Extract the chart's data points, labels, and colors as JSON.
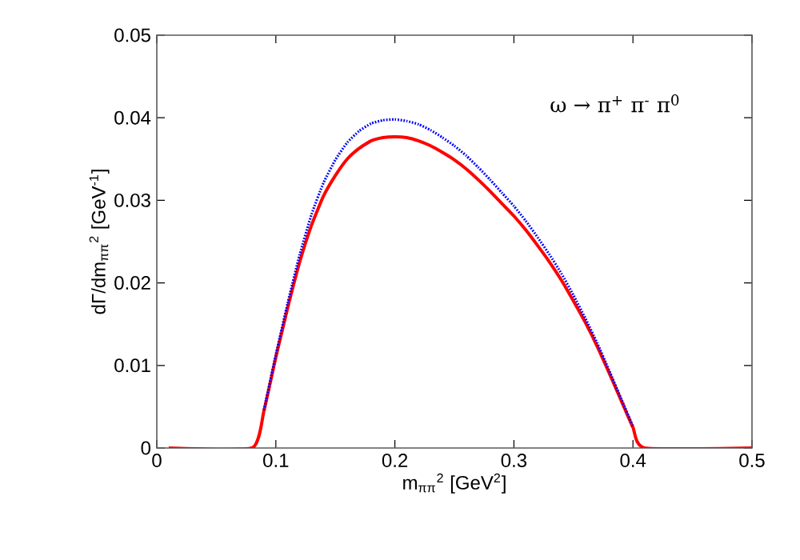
{
  "chart_data": {
    "type": "line",
    "xlabel": "m$_{ππ}$$^{2}$ [GeV$^{2}$]",
    "ylabel": "dΓ/dm$_{ππ}$$^{2}$ [GeV$^{-1}$]",
    "annotations": [
      "ω → π$^{+}$ π$^{-}$ π$^{0}$"
    ],
    "xlim": [
      0,
      0.5
    ],
    "ylim": [
      0,
      0.05
    ],
    "xticks": [
      0,
      0.1,
      0.2,
      0.3,
      0.4,
      0.5
    ],
    "yticks": [
      0,
      0.01,
      0.02,
      0.03,
      0.04,
      0.05
    ],
    "grid": false,
    "marker": "none",
    "series": [
      {
        "color": "#0000ff",
        "line_style": "dotted",
        "x": [
          0.09,
          0.1,
          0.11,
          0.12,
          0.13,
          0.14,
          0.15,
          0.16,
          0.17,
          0.18,
          0.19,
          0.2,
          0.21,
          0.22,
          0.23,
          0.24,
          0.25,
          0.26,
          0.27,
          0.28,
          0.29,
          0.3,
          0.31,
          0.32,
          0.33,
          0.34,
          0.35,
          0.36,
          0.37,
          0.38,
          0.39,
          0.4
        ],
        "values": [
          0.0046,
          0.0113,
          0.0176,
          0.0234,
          0.0283,
          0.0321,
          0.0349,
          0.037,
          0.0384,
          0.0393,
          0.0397,
          0.0398,
          0.0396,
          0.0392,
          0.0385,
          0.0376,
          0.0366,
          0.0354,
          0.034,
          0.0325,
          0.0309,
          0.0293,
          0.0275,
          0.0255,
          0.0234,
          0.0211,
          0.0185,
          0.0157,
          0.0127,
          0.0094,
          0.006,
          0.0026
        ]
      },
      {
        "color": "#ff0000",
        "line_style": "solid",
        "x": [
          0.01,
          0.08,
          0.09,
          0.1,
          0.11,
          0.12,
          0.13,
          0.14,
          0.15,
          0.16,
          0.17,
          0.18,
          0.19,
          0.2,
          0.21,
          0.22,
          0.23,
          0.24,
          0.25,
          0.26,
          0.27,
          0.28,
          0.29,
          0.3,
          0.31,
          0.32,
          0.33,
          0.34,
          0.35,
          0.36,
          0.37,
          0.38,
          0.39,
          0.4,
          0.41,
          0.5
        ],
        "values": [
          0,
          0,
          0.0045,
          0.011,
          0.017,
          0.0225,
          0.027,
          0.0305,
          0.033,
          0.035,
          0.0363,
          0.0372,
          0.0376,
          0.0377,
          0.0376,
          0.0372,
          0.0366,
          0.0358,
          0.0349,
          0.0338,
          0.0325,
          0.0311,
          0.0296,
          0.0281,
          0.0264,
          0.0245,
          0.0225,
          0.0203,
          0.0178,
          0.0152,
          0.0123,
          0.0091,
          0.0058,
          0.0025,
          0,
          0
        ]
      }
    ]
  }
}
